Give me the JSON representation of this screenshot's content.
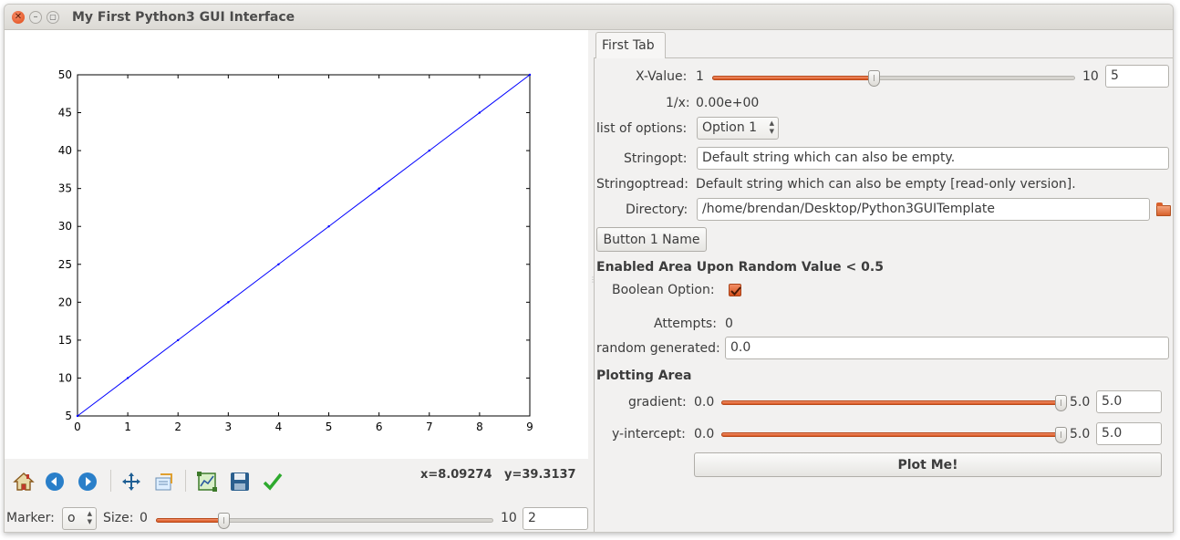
{
  "window": {
    "title": "My First Python3 GUI Interface"
  },
  "plot": {
    "toolbar_icons": [
      "home-icon",
      "back-arrow-icon",
      "forward-arrow-icon",
      "pan-icon",
      "zoom-icon",
      "configure-subplots-icon",
      "save-icon",
      "edit-axes-icon"
    ],
    "cursor_x": "x=8.09274",
    "cursor_y": "y=39.3137",
    "marker_label": "Marker:",
    "marker_value": "o",
    "size_label": "Size:",
    "size_min": "0",
    "size_max": "10",
    "size_value": "2",
    "size_fraction": 0.2
  },
  "chart_data": {
    "type": "line",
    "x": [
      0,
      1,
      2,
      3,
      4,
      5,
      6,
      7,
      8,
      9
    ],
    "series": [
      {
        "values": [
          5,
          10,
          15,
          20,
          25,
          30,
          35,
          40,
          45,
          50
        ],
        "color": "#0000ff",
        "marker": "o",
        "marker_size": 2
      }
    ],
    "xlim": [
      0,
      9
    ],
    "ylim": [
      5,
      50
    ],
    "xticks": [
      "0",
      "1",
      "2",
      "3",
      "4",
      "5",
      "6",
      "7",
      "8",
      "9"
    ],
    "yticks": [
      "5",
      "10",
      "15",
      "20",
      "25",
      "30",
      "35",
      "40",
      "45",
      "50"
    ],
    "grid": false,
    "title": "",
    "xlabel": "",
    "ylabel": ""
  },
  "tab": {
    "label": "First Tab"
  },
  "form": {
    "xvalue_label": "X-Value:",
    "xvalue_min": "1",
    "xvalue_max": "10",
    "xvalue_value": "5",
    "xvalue_fraction": 0.444,
    "reciprocal_label": "1/x:",
    "reciprocal_value": "0.00e+00",
    "options_label": "list of options:",
    "options_value": "Option 1",
    "stringopt_label": "Stringopt:",
    "stringopt_value": "Default string which can also be empty.",
    "stringoptread_label": "Stringoptread:",
    "stringoptread_value": "Default string which can also be empty [read-only version].",
    "directory_label": "Directory:",
    "directory_value": "/home/brendan/Desktop/Python3GUITemplate",
    "button1_label": "Button 1 Name",
    "enabled_area_heading": "Enabled Area Upon Random Value < 0.5",
    "boolean_label": "Boolean Option:",
    "boolean_checked": true,
    "attempts_label": "Attempts:",
    "attempts_value": "0",
    "random_label": "random generated:",
    "random_value": "0.0",
    "plotting_heading": "Plotting Area",
    "gradient_label": "gradient:",
    "gradient_min": "0.0",
    "gradient_max": "5.0",
    "gradient_value": "5.0",
    "gradient_fraction": 1.0,
    "intercept_label": "y-intercept:",
    "intercept_min": "0.0",
    "intercept_max": "5.0",
    "intercept_value": "5.0",
    "intercept_fraction": 1.0,
    "plot_button_label": "Plot Me!"
  },
  "colors": {
    "accent": "#dd5a23",
    "line": "#0000ff"
  }
}
